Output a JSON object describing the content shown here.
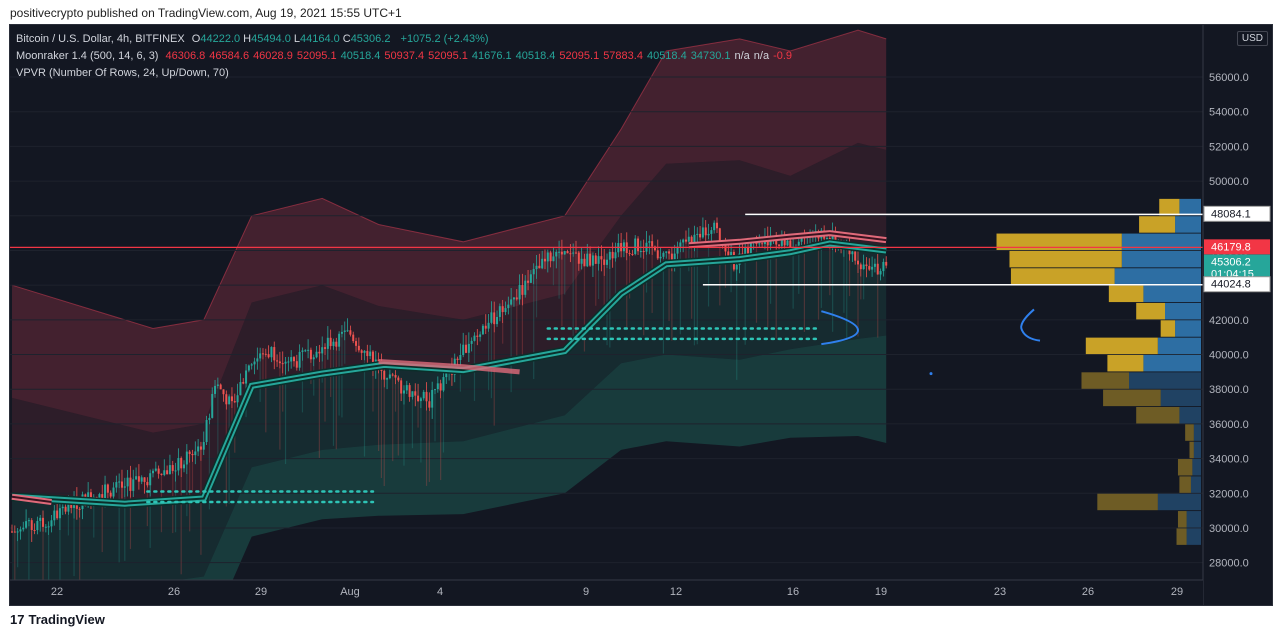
{
  "publisher_line": "positivecrypto published on TradingView.com, Aug 19, 2021 15:55 UTC+1",
  "footer": {
    "brand": "TradingView",
    "logo_glyph": "17"
  },
  "currency_badge": "USD",
  "legend": {
    "symbol": "Bitcoin / U.S. Dollar, 4h, BITFINEX",
    "ohlc": [
      {
        "k": "O",
        "v": "44222.0"
      },
      {
        "k": "H",
        "v": "45494.0"
      },
      {
        "k": "L",
        "v": "44164.0"
      },
      {
        "k": "C",
        "v": "45306.2"
      }
    ],
    "change": "+1075.2 (+2.43%)",
    "indicator1_name": "Moonraker 1.4 (500, 14, 6, 3)",
    "indicator1_values": [
      {
        "v": "46306.8",
        "c": "#f23645"
      },
      {
        "v": "46584.6",
        "c": "#f23645"
      },
      {
        "v": "46028.9",
        "c": "#f23645"
      },
      {
        "v": "52095.1",
        "c": "#f23645"
      },
      {
        "v": "40518.4",
        "c": "#26a69a"
      },
      {
        "v": "50937.4",
        "c": "#f23645"
      },
      {
        "v": "52095.1",
        "c": "#f23645"
      },
      {
        "v": "41676.1",
        "c": "#26a69a"
      },
      {
        "v": "40518.4",
        "c": "#26a69a"
      },
      {
        "v": "52095.1",
        "c": "#f23645"
      },
      {
        "v": "57883.4",
        "c": "#f23645"
      },
      {
        "v": "40518.4",
        "c": "#26a69a"
      },
      {
        "v": "34730.1",
        "c": "#26a69a"
      },
      {
        "v": "n/a",
        "c": "#d1d4dc"
      },
      {
        "v": "n/a",
        "c": "#d1d4dc"
      },
      {
        "v": "-0.9",
        "c": "#f23645"
      }
    ],
    "indicator2_name": "VPVR (Number Of Rows, 24, Up/Down, 70)"
  },
  "colors": {
    "background": "#131722",
    "up": "#26a69a",
    "down": "#ef5350",
    "band_red": "#6b2a3a",
    "band_green": "#1e5a52",
    "vp_up": "#2d6ea3",
    "vp_down": "#c9a227",
    "hline_red": "#f23645",
    "hline_white": "#ffffff"
  },
  "chart_data": {
    "type": "candlestick",
    "title": "Bitcoin / U.S. Dollar, 4h, BITFINEX",
    "x_tick_labels": [
      "22",
      "26",
      "29",
      "Aug",
      "4",
      "9",
      "12",
      "16",
      "19",
      "23",
      "26",
      "29"
    ],
    "y_tick_labels": [
      "28000.0",
      "30000.0",
      "32000.0",
      "34000.0",
      "36000.0",
      "38000.0",
      "40000.0",
      "42000.0",
      "44000.0",
      "46000.0",
      "48000.0",
      "50000.0",
      "52000.0",
      "54000.0",
      "56000.0"
    ],
    "ylim": [
      27000,
      59000
    ],
    "price_labels": [
      {
        "label": "48084.1",
        "value": 48084.1,
        "style": "white"
      },
      {
        "label": "46179.8",
        "value": 46179.8,
        "style": "red"
      },
      {
        "label": "45306.2",
        "value": 45306.2,
        "style": "teal",
        "sub": "01:04:15"
      },
      {
        "label": "44024.8",
        "value": 44024.8,
        "style": "white"
      }
    ],
    "close_path": [
      [
        0,
        29800
      ],
      [
        10,
        30200
      ],
      [
        20,
        31200
      ],
      [
        30,
        32000
      ],
      [
        40,
        32400
      ],
      [
        50,
        33000
      ],
      [
        60,
        33700
      ],
      [
        68,
        35000
      ],
      [
        72,
        38500
      ],
      [
        78,
        37000
      ],
      [
        84,
        39500
      ],
      [
        92,
        40200
      ],
      [
        100,
        39500
      ],
      [
        110,
        40600
      ],
      [
        120,
        41200
      ],
      [
        128,
        39600
      ],
      [
        136,
        38400
      ],
      [
        142,
        37800
      ],
      [
        148,
        37300
      ],
      [
        156,
        39200
      ],
      [
        162,
        40800
      ],
      [
        170,
        42000
      ],
      [
        178,
        43200
      ],
      [
        186,
        44800
      ],
      [
        192,
        45800
      ],
      [
        200,
        45500
      ],
      [
        208,
        45400
      ],
      [
        214,
        46000
      ],
      [
        222,
        46300
      ],
      [
        228,
        46000
      ],
      [
        234,
        45700
      ],
      [
        242,
        46800
      ],
      [
        248,
        47500
      ],
      [
        256,
        45300
      ],
      [
        262,
        46200
      ],
      [
        270,
        46900
      ],
      [
        276,
        46100
      ],
      [
        284,
        47200
      ],
      [
        290,
        46600
      ],
      [
        298,
        45900
      ],
      [
        304,
        44800
      ],
      [
        310,
        45300
      ]
    ],
    "baseline_path": [
      [
        0,
        31800
      ],
      [
        40,
        31400
      ],
      [
        68,
        31700
      ],
      [
        85,
        38200
      ],
      [
        110,
        38900
      ],
      [
        132,
        39400
      ],
      [
        160,
        39100
      ],
      [
        196,
        40200
      ],
      [
        216,
        43500
      ],
      [
        232,
        45200
      ],
      [
        258,
        45500
      ],
      [
        276,
        45900
      ],
      [
        290,
        46400
      ],
      [
        310,
        46000
      ]
    ],
    "upper_band_outer": [
      [
        0,
        44000
      ],
      [
        50,
        41500
      ],
      [
        68,
        42000
      ],
      [
        85,
        48000
      ],
      [
        110,
        49000
      ],
      [
        130,
        47500
      ],
      [
        160,
        46500
      ],
      [
        196,
        48000
      ],
      [
        216,
        53000
      ],
      [
        232,
        57500
      ],
      [
        258,
        58200
      ],
      [
        276,
        57500
      ],
      [
        300,
        58700
      ],
      [
        310,
        58200
      ]
    ],
    "upper_band_inner": [
      [
        0,
        37500
      ],
      [
        50,
        35500
      ],
      [
        68,
        36000
      ],
      [
        85,
        43000
      ],
      [
        110,
        44000
      ],
      [
        130,
        42800
      ],
      [
        160,
        42000
      ],
      [
        196,
        43500
      ],
      [
        216,
        48000
      ],
      [
        232,
        51000
      ],
      [
        258,
        51200
      ],
      [
        276,
        50300
      ],
      [
        300,
        52200
      ],
      [
        310,
        51800
      ]
    ],
    "lower_band_inner": [
      [
        0,
        26500
      ],
      [
        50,
        26800
      ],
      [
        68,
        27200
      ],
      [
        85,
        33500
      ],
      [
        110,
        34500
      ],
      [
        130,
        34800
      ],
      [
        160,
        35000
      ],
      [
        196,
        36500
      ],
      [
        216,
        39500
      ],
      [
        232,
        40000
      ],
      [
        258,
        39700
      ],
      [
        276,
        40300
      ],
      [
        300,
        40900
      ],
      [
        310,
        41100
      ]
    ],
    "lower_band_outer": [
      [
        0,
        22500
      ],
      [
        50,
        22800
      ],
      [
        68,
        23200
      ],
      [
        85,
        29500
      ],
      [
        110,
        30500
      ],
      [
        130,
        30700
      ],
      [
        160,
        30800
      ],
      [
        196,
        32000
      ],
      [
        216,
        34500
      ],
      [
        232,
        35000
      ],
      [
        258,
        34700
      ],
      [
        276,
        35200
      ],
      [
        300,
        35300
      ],
      [
        310,
        34900
      ]
    ],
    "volume_profile_rows": [
      {
        "price": 48500,
        "up": 0.15,
        "down": 0.14
      },
      {
        "price": 47500,
        "up": 0.18,
        "down": 0.25
      },
      {
        "price": 46500,
        "up": 0.55,
        "down": 0.87
      },
      {
        "price": 45500,
        "up": 0.55,
        "down": 0.78
      },
      {
        "price": 44500,
        "up": 0.6,
        "down": 0.72
      },
      {
        "price": 43500,
        "up": 0.4,
        "down": 0.24
      },
      {
        "price": 42500,
        "up": 0.25,
        "down": 0.2
      },
      {
        "price": 41500,
        "up": 0.18,
        "down": 0.1
      },
      {
        "price": 40500,
        "up": 0.3,
        "down": 0.5
      },
      {
        "price": 39500,
        "up": 0.4,
        "down": 0.25
      },
      {
        "price": 38500,
        "up": 0.5,
        "down": 0.33
      },
      {
        "price": 37500,
        "up": 0.28,
        "down": 0.4
      },
      {
        "price": 36500,
        "up": 0.15,
        "down": 0.3
      },
      {
        "price": 35500,
        "up": 0.05,
        "down": 0.06
      },
      {
        "price": 34500,
        "up": 0.05,
        "down": 0.03
      },
      {
        "price": 33500,
        "up": 0.06,
        "down": 0.1
      },
      {
        "price": 32500,
        "up": 0.07,
        "down": 0.08
      },
      {
        "price": 31500,
        "up": 0.3,
        "down": 0.42
      },
      {
        "price": 30500,
        "up": 0.1,
        "down": 0.06
      },
      {
        "price": 29500,
        "up": 0.1,
        "down": 0.07
      }
    ],
    "dotted_levels": [
      {
        "from": 190,
        "to": 286,
        "values": [
          41500,
          40900
        ]
      },
      {
        "from": 48,
        "to": 128,
        "values": [
          32100,
          31500
        ]
      }
    ]
  }
}
